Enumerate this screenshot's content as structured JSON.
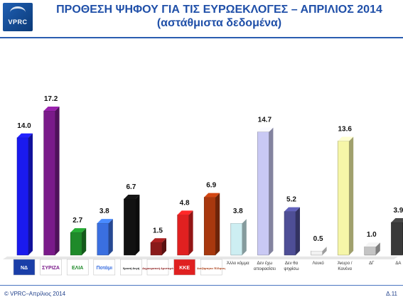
{
  "header": {
    "logo_text": "VPRC",
    "title": "ΠΡΟΘΕΣΗ ΨΗΦΟΥ ΓΙΑ ΤΙΣ ΕΥΡΩΕΚΛΟΓΕΣ – ΑΠΡΙΛΙΟΣ 2014",
    "subtitle": "(αστάθμιστα δεδομένα)"
  },
  "footer": {
    "left": "© VPRC–Απρίλιος 2014",
    "right": "Δ.11"
  },
  "chart_data": {
    "type": "bar",
    "title": "ΠΡΟΘΕΣΗ ΨΗΦΟΥ ΓΙΑ ΤΙΣ ΕΥΡΩΕΚΛΟΓΕΣ – ΑΠΡΙΛΙΟΣ 2014",
    "subtitle": "(αστάθμιστα δεδομένα)",
    "ylim": [
      0,
      20
    ],
    "grid": false,
    "categories": [
      {
        "label": "ΝΔ",
        "kind": "logo",
        "value": 14.0,
        "color": "#1a1aee",
        "icon": "nd-logo-icon"
      },
      {
        "label": "ΣΥΡΙΖΑ",
        "kind": "logo",
        "value": 17.2,
        "color": "#7a1a8a",
        "icon": "syriza-logo-icon"
      },
      {
        "label": "ΕΛΙΑ",
        "kind": "logo",
        "value": 2.7,
        "color": "#1f8a2a",
        "icon": "elia-logo-icon"
      },
      {
        "label": "Ποτάμι",
        "kind": "logo",
        "value": 3.8,
        "color": "#3a6fe0",
        "icon": "potami-logo-icon"
      },
      {
        "label": "Χρυσή Αυγή",
        "kind": "logo",
        "value": 6.7,
        "color": "#111111",
        "icon": "golden-dawn-logo-icon"
      },
      {
        "label": "Δημοκρατική Αριστερά",
        "kind": "logo",
        "value": 1.5,
        "color": "#8a1a1a",
        "icon": "dimar-logo-icon"
      },
      {
        "label": "ΚΚΕ",
        "kind": "logo",
        "value": 4.8,
        "color": "#e02020",
        "icon": "kke-logo-icon"
      },
      {
        "label": "Ανεξάρτητοι Έλληνες",
        "kind": "logo",
        "value": 6.9,
        "color": "#a8380e",
        "icon": "anel-logo-icon"
      },
      {
        "label": "Άλλο κόμμα",
        "kind": "text",
        "value": 3.8,
        "color": "#cdeef2"
      },
      {
        "label": "Δεν έχω αποφασίσει",
        "kind": "text",
        "value": 14.7,
        "color": "#c9c9f4"
      },
      {
        "label": "Δεν θα ψηφίσω",
        "kind": "text",
        "value": 5.2,
        "color": "#4e4e96"
      },
      {
        "label": "Λευκό",
        "kind": "text",
        "value": 0.5,
        "color": "#f2f2f2"
      },
      {
        "label": "Άκυρο / Κανένα",
        "kind": "text",
        "value": 13.6,
        "color": "#f6f6a8"
      },
      {
        "label": "ΔΓ",
        "kind": "text",
        "value": 1.0,
        "color": "#c4c4c4"
      },
      {
        "label": "ΔΑ",
        "kind": "text",
        "value": 3.9,
        "color": "#3a3a3a"
      }
    ],
    "value_labels": [
      "14.0",
      "17.2",
      "2.7",
      "3.8",
      "6.7",
      "1.5",
      "4.8",
      "6.9",
      "3.8",
      "14.7",
      "5.2",
      "0.5",
      "13.6",
      "1.0",
      "3.9"
    ]
  }
}
